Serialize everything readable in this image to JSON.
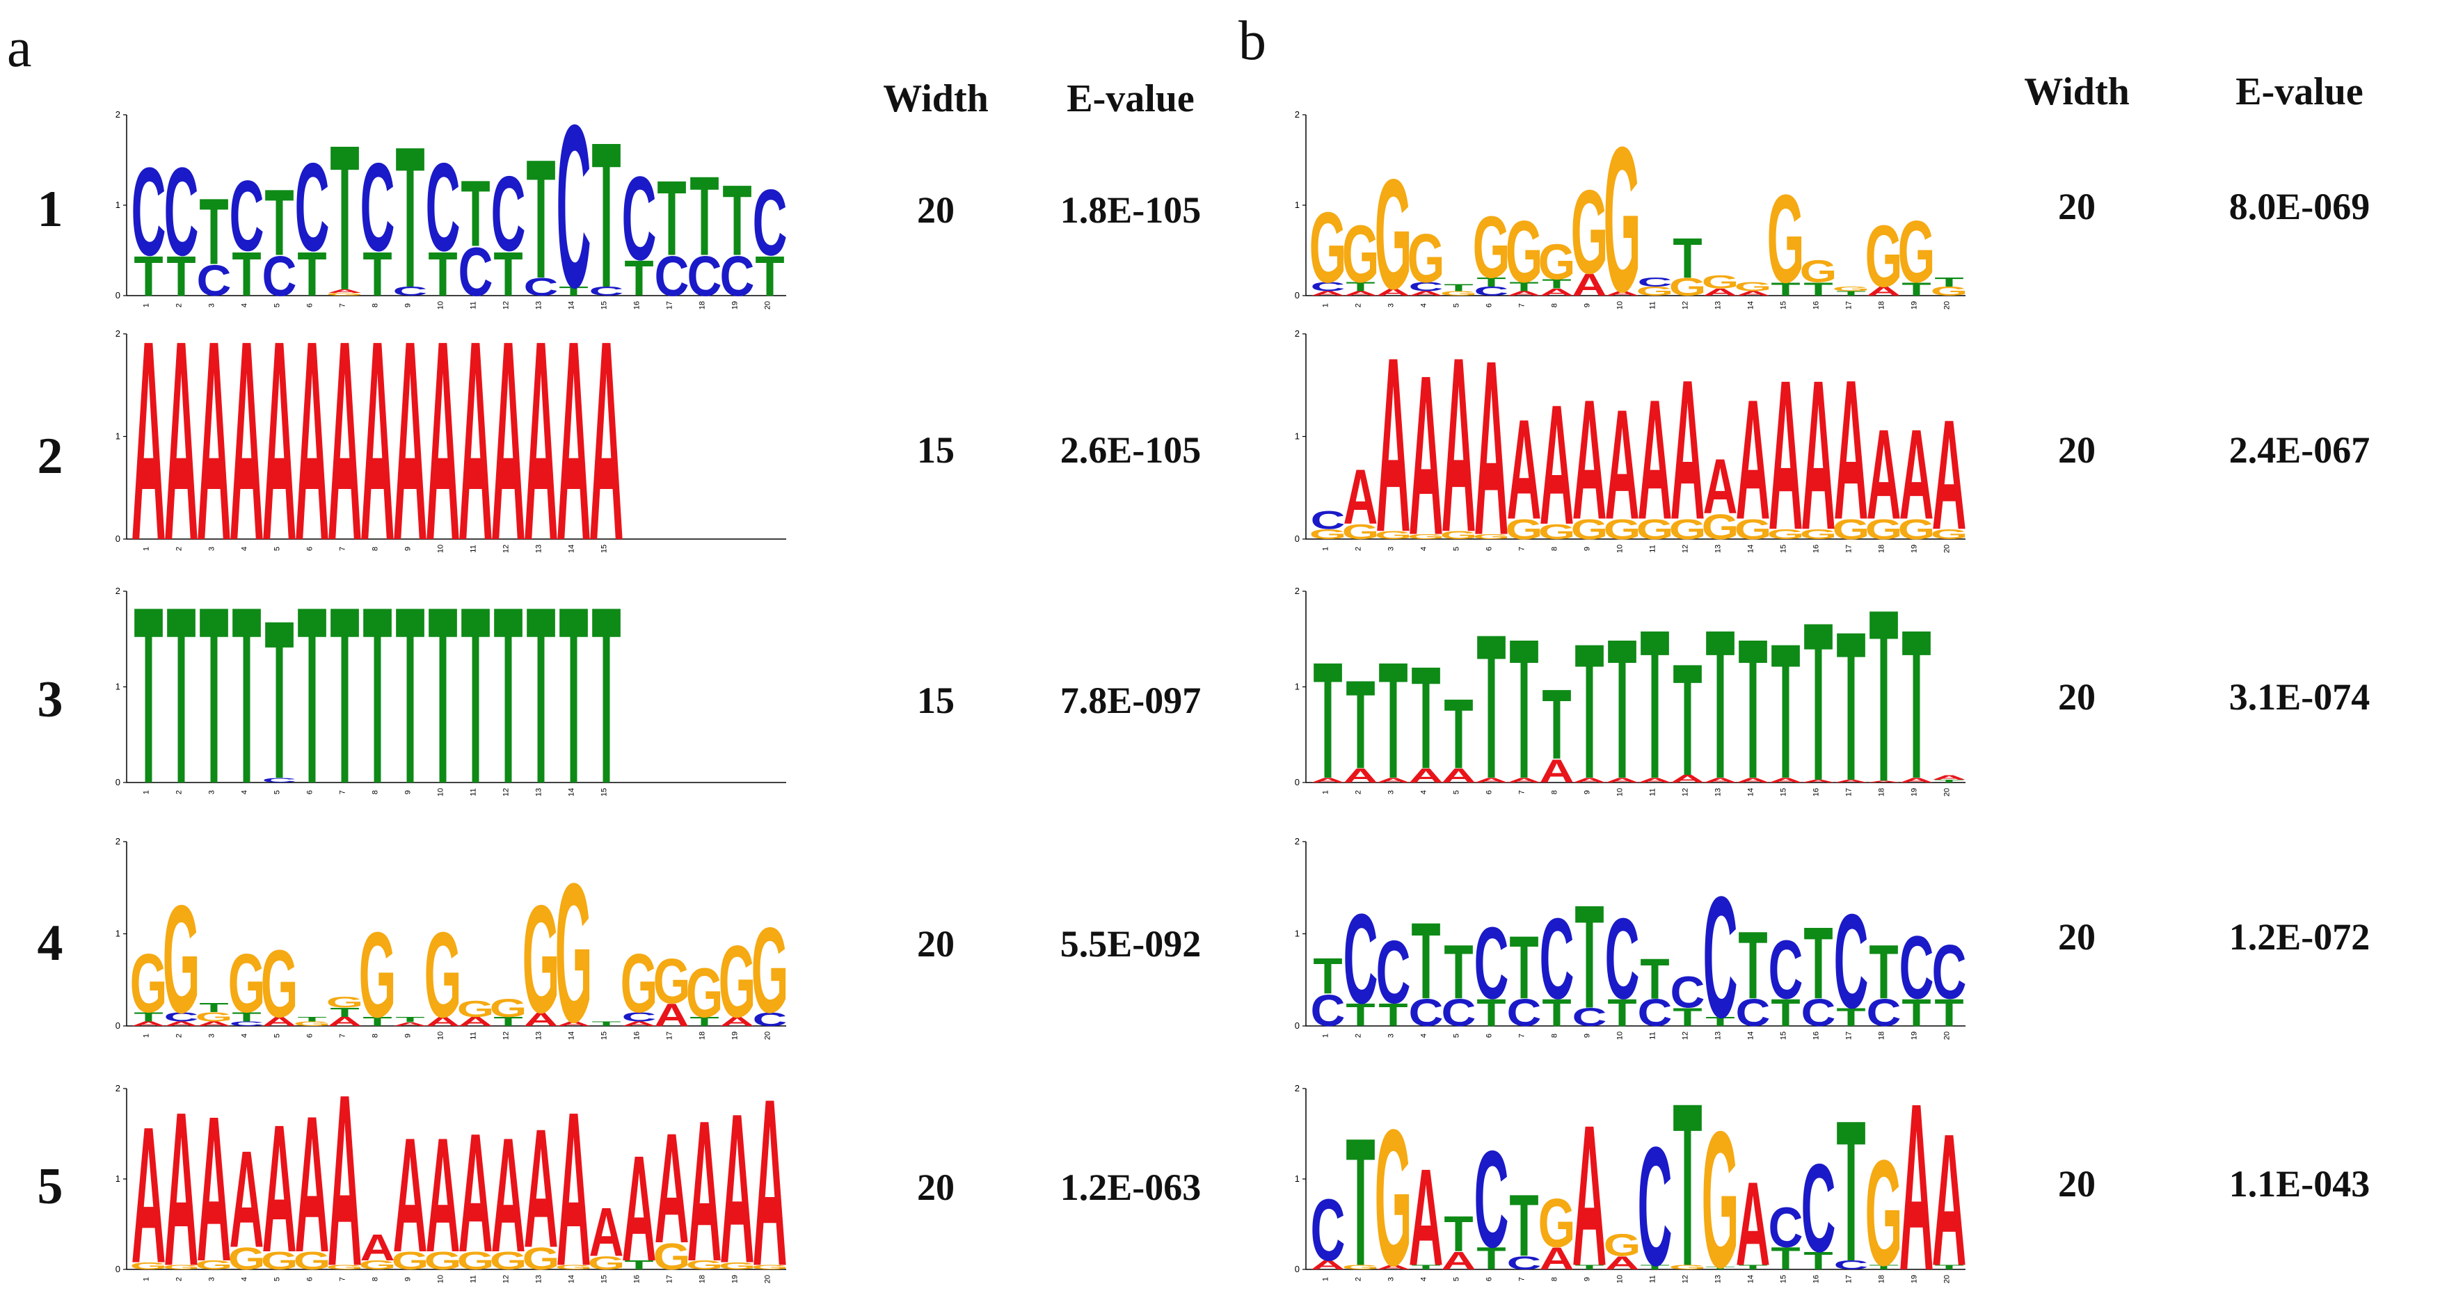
{
  "panels": [
    {
      "label": "a",
      "headers": {
        "width": "Width",
        "evalue": "E-value"
      },
      "motifs": [
        {
          "number": "1",
          "width": "20",
          "evalue": "1.8E-105",
          "positions": [
            {
              "C": 1.0,
              "T": 0.45
            },
            {
              "C": 1.0,
              "T": 0.45
            },
            {
              "T": 0.75,
              "C": 0.35
            },
            {
              "C": 0.8,
              "T": 0.5
            },
            {
              "T": 0.75,
              "C": 0.45
            },
            {
              "C": 1.0,
              "T": 0.5
            },
            {
              "T": 1.65,
              "A": 0.04,
              "G": 0.03
            },
            {
              "C": 1.0,
              "T": 0.5
            },
            {
              "T": 1.6,
              "C": 0.1
            },
            {
              "C": 1.0,
              "T": 0.5
            },
            {
              "T": 0.75,
              "C": 0.55
            },
            {
              "C": 0.85,
              "T": 0.5
            },
            {
              "T": 1.35,
              "C": 0.2
            },
            {
              "C": 1.85,
              "T": 0.1
            },
            {
              "T": 1.65,
              "C": 0.1
            },
            {
              "C": 0.95,
              "T": 0.4
            },
            {
              "T": 0.85,
              "C": 0.45
            },
            {
              "T": 0.9,
              "C": 0.45
            },
            {
              "T": 0.8,
              "C": 0.45
            },
            {
              "C": 0.75,
              "T": 0.45
            }
          ]
        },
        {
          "number": "2",
          "width": "15",
          "evalue": "2.6E-105",
          "positions": [
            {
              "A": 2.0
            },
            {
              "A": 2.0
            },
            {
              "A": 2.0
            },
            {
              "A": 2.0
            },
            {
              "A": 2.0
            },
            {
              "A": 2.0
            },
            {
              "A": 2.0
            },
            {
              "A": 2.0
            },
            {
              "A": 2.0
            },
            {
              "A": 2.0
            },
            {
              "A": 2.0
            },
            {
              "A": 2.0
            },
            {
              "A": 2.0
            },
            {
              "A": 2.0
            },
            {
              "A": 2.0
            }
          ]
        },
        {
          "number": "3",
          "width": "15",
          "evalue": "7.8E-097",
          "positions": [
            {
              "T": 1.9
            },
            {
              "T": 1.9
            },
            {
              "T": 1.9
            },
            {
              "T": 1.9
            },
            {
              "T": 1.7,
              "C": 0.05
            },
            {
              "T": 1.9
            },
            {
              "T": 1.9
            },
            {
              "T": 1.9
            },
            {
              "T": 1.9
            },
            {
              "T": 1.9
            },
            {
              "T": 1.9
            },
            {
              "T": 1.9
            },
            {
              "T": 1.9
            },
            {
              "T": 1.9
            },
            {
              "T": 1.9
            }
          ]
        },
        {
          "number": "4",
          "width": "20",
          "evalue": "5.5E-092",
          "positions": [
            {
              "G": 0.65,
              "T": 0.1,
              "A": 0.05
            },
            {
              "G": 1.2,
              "C": 0.1,
              "A": 0.05
            },
            {
              "G": 0.1,
              "T": 0.1,
              "A": 0.05
            },
            {
              "G": 0.65,
              "T": 0.1,
              "C": 0.05
            },
            {
              "G": 0.75,
              "A": 0.1
            },
            {
              "G": 0.05,
              "T": 0.05
            },
            {
              "G": 0.12,
              "A": 0.1,
              "T": 0.1
            },
            {
              "G": 0.95,
              "T": 0.1
            },
            {
              "T": 0.06,
              "A": 0.04
            },
            {
              "G": 0.95,
              "A": 0.1
            },
            {
              "G": 0.18,
              "A": 0.1
            },
            {
              "G": 0.2,
              "T": 0.1
            },
            {
              "G": 1.2,
              "A": 0.15
            },
            {
              "G": 1.55,
              "A": 0.05
            },
            {
              "T": 0.05
            },
            {
              "G": 0.65,
              "C": 0.1,
              "A": 0.05
            },
            {
              "G": 0.5,
              "A": 0.25
            },
            {
              "G": 0.55,
              "T": 0.1
            },
            {
              "G": 0.8,
              "A": 0.1
            },
            {
              "G": 0.95,
              "C": 0.15
            }
          ]
        },
        {
          "number": "5",
          "width": "20",
          "evalue": "1.2E-063",
          "positions": [
            {
              "A": 1.55,
              "G": 0.08
            },
            {
              "A": 1.75,
              "G": 0.05
            },
            {
              "A": 1.65,
              "G": 0.1
            },
            {
              "A": 1.1,
              "G": 0.25
            },
            {
              "A": 1.45,
              "G": 0.2
            },
            {
              "A": 1.55,
              "G": 0.2
            },
            {
              "A": 1.95,
              "G": 0.05
            },
            {
              "A": 0.3,
              "G": 0.1
            },
            {
              "A": 1.3,
              "G": 0.2
            },
            {
              "A": 1.3,
              "G": 0.2
            },
            {
              "A": 1.35,
              "G": 0.2
            },
            {
              "A": 1.3,
              "G": 0.2
            },
            {
              "A": 1.35,
              "G": 0.25
            },
            {
              "A": 1.75,
              "G": 0.05
            },
            {
              "A": 0.55,
              "G": 0.15
            },
            {
              "A": 1.2,
              "T": 0.1
            },
            {
              "A": 1.25,
              "G": 0.3
            },
            {
              "A": 1.6,
              "G": 0.1
            },
            {
              "A": 1.7,
              "G": 0.08
            },
            {
              "A": 1.9,
              "G": 0.05
            }
          ]
        }
      ]
    },
    {
      "label": "b",
      "headers": {
        "width": "Width",
        "evalue": "E-value"
      },
      "motifs": [
        {
          "number": "1",
          "width": "20",
          "evalue": "8.0E-069",
          "positions": [
            {
              "G": 0.8,
              "C": 0.1,
              "A": 0.05
            },
            {
              "G": 0.65,
              "T": 0.1,
              "A": 0.05
            },
            {
              "G": 1.25,
              "A": 0.08
            },
            {
              "G": 0.55,
              "C": 0.1,
              "A": 0.05
            },
            {
              "T": 0.08,
              "G": 0.05
            },
            {
              "G": 0.7,
              "C": 0.1,
              "T": 0.1
            },
            {
              "G": 0.7,
              "T": 0.1,
              "A": 0.05
            },
            {
              "G": 0.4,
              "T": 0.1,
              "A": 0.08
            },
            {
              "G": 0.95,
              "A": 0.25
            },
            {
              "G": 1.65,
              "A": 0.05
            },
            {
              "G": 0.1,
              "C": 0.1
            },
            {
              "T": 0.45,
              "G": 0.2
            },
            {
              "G": 0.15,
              "A": 0.08
            },
            {
              "G": 0.1,
              "A": 0.05
            },
            {
              "G": 1.0,
              "T": 0.15
            },
            {
              "G": 0.25,
              "T": 0.15
            },
            {
              "T": 0.05,
              "G": 0.05
            },
            {
              "G": 0.7,
              "A": 0.1
            },
            {
              "G": 0.7,
              "T": 0.15
            },
            {
              "G": 0.1,
              "T": 0.1
            }
          ]
        },
        {
          "number": "2",
          "width": "20",
          "evalue": "2.4E-067",
          "positions": [
            {
              "C": 0.18,
              "G": 0.1
            },
            {
              "A": 0.55,
              "G": 0.15
            },
            {
              "A": 1.75,
              "G": 0.08
            },
            {
              "A": 1.6,
              "G": 0.05
            },
            {
              "A": 1.75,
              "G": 0.08
            },
            {
              "A": 1.75,
              "G": 0.05
            },
            {
              "A": 1.0,
              "G": 0.2
            },
            {
              "A": 1.2,
              "G": 0.15
            },
            {
              "A": 1.2,
              "G": 0.2
            },
            {
              "A": 1.1,
              "G": 0.2
            },
            {
              "A": 1.2,
              "G": 0.2
            },
            {
              "A": 1.4,
              "G": 0.2
            },
            {
              "A": 0.55,
              "G": 0.25
            },
            {
              "A": 1.2,
              "G": 0.2
            },
            {
              "A": 1.5,
              "G": 0.1
            },
            {
              "A": 1.5,
              "G": 0.1
            },
            {
              "A": 1.4,
              "G": 0.2
            },
            {
              "A": 0.9,
              "G": 0.2
            },
            {
              "A": 0.9,
              "G": 0.2
            },
            {
              "A": 1.1,
              "G": 0.1
            }
          ]
        },
        {
          "number": "3",
          "width": "20",
          "evalue": "3.1E-074",
          "positions": [
            {
              "T": 1.25,
              "A": 0.05
            },
            {
              "T": 0.95,
              "A": 0.15
            },
            {
              "T": 1.25,
              "A": 0.05
            },
            {
              "T": 1.1,
              "A": 0.15
            },
            {
              "T": 0.75,
              "A": 0.15
            },
            {
              "T": 1.55,
              "A": 0.05
            },
            {
              "T": 1.5,
              "A": 0.05
            },
            {
              "T": 0.75,
              "A": 0.25
            },
            {
              "T": 1.45,
              "A": 0.05
            },
            {
              "T": 1.5,
              "A": 0.05
            },
            {
              "T": 1.6,
              "A": 0.05
            },
            {
              "T": 1.2,
              "A": 0.08
            },
            {
              "T": 1.6,
              "A": 0.05
            },
            {
              "T": 1.5,
              "A": 0.05
            },
            {
              "T": 1.45,
              "A": 0.05
            },
            {
              "T": 1.7,
              "A": 0.03
            },
            {
              "T": 1.6,
              "A": 0.03
            },
            {
              "T": 1.85,
              "A": 0.02
            },
            {
              "T": 1.6,
              "A": 0.05
            },
            {
              "A": 0.05,
              "T": 0.03
            }
          ]
        },
        {
          "number": "4",
          "width": "20",
          "evalue": "1.2E-072",
          "positions": [
            {
              "T": 0.4,
              "C": 0.35
            },
            {
              "C": 1.0,
              "T": 0.25
            },
            {
              "C": 0.7,
              "T": 0.25
            },
            {
              "T": 0.85,
              "C": 0.3
            },
            {
              "T": 0.6,
              "C": 0.3
            },
            {
              "C": 0.8,
              "T": 0.3
            },
            {
              "T": 0.7,
              "C": 0.3
            },
            {
              "C": 0.9,
              "T": 0.3
            },
            {
              "T": 1.15,
              "C": 0.2
            },
            {
              "C": 0.9,
              "T": 0.3
            },
            {
              "T": 0.45,
              "C": 0.3
            },
            {
              "C": 0.35,
              "T": 0.2
            },
            {
              "C": 1.35,
              "T": 0.1
            },
            {
              "T": 0.75,
              "C": 0.3
            },
            {
              "C": 0.65,
              "T": 0.3
            },
            {
              "T": 0.8,
              "C": 0.3
            },
            {
              "C": 1.05,
              "T": 0.2
            },
            {
              "T": 0.6,
              "C": 0.3
            },
            {
              "C": 0.7,
              "T": 0.3
            },
            {
              "C": 0.6,
              "T": 0.3
            }
          ]
        },
        {
          "number": "5",
          "width": "20",
          "evalue": "1.1E-043",
          "positions": [
            {
              "C": 0.7,
              "A": 0.1
            },
            {
              "T": 1.45,
              "G": 0.05
            },
            {
              "G": 1.55,
              "A": 0.05
            },
            {
              "A": 1.1,
              "T": 0.05
            },
            {
              "T": 0.4,
              "A": 0.2
            },
            {
              "C": 1.1,
              "T": 0.25
            },
            {
              "T": 0.7,
              "C": 0.15
            },
            {
              "G": 0.55,
              "A": 0.25
            },
            {
              "A": 1.6,
              "T": 0.05
            },
            {
              "G": 0.25,
              "A": 0.15
            },
            {
              "C": 1.35,
              "T": 0.05
            },
            {
              "T": 1.85,
              "G": 0.05
            },
            {
              "G": 1.55,
              "T": 0.03
            },
            {
              "A": 0.95,
              "T": 0.05
            },
            {
              "C": 0.45,
              "T": 0.25
            },
            {
              "C": 1.0,
              "T": 0.2
            },
            {
              "T": 1.6,
              "C": 0.1
            },
            {
              "G": 1.2,
              "T": 0.05
            },
            {
              "A": 1.9
            },
            {
              "A": 1.5,
              "T": 0.05
            }
          ]
        }
      ]
    }
  ],
  "colors": {
    "A": "#e8141a",
    "C": "#1a1ac8",
    "G": "#f5a912",
    "T": "#0e8a16"
  },
  "axis_ticks": [
    "0",
    "1",
    "2"
  ]
}
